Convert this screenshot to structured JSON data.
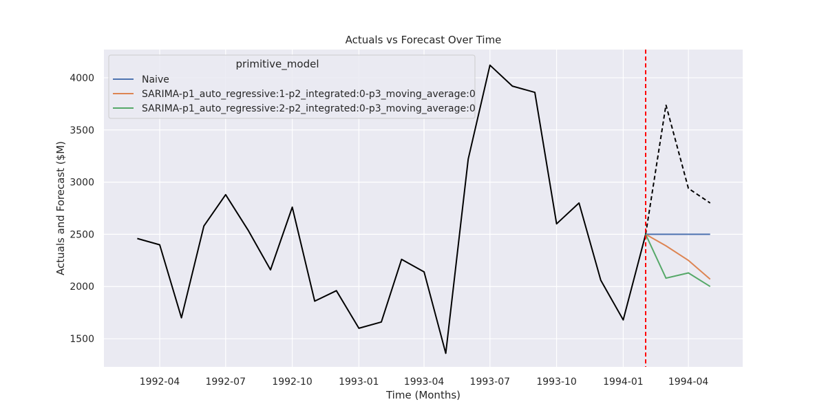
{
  "chart_data": {
    "type": "line",
    "title": "Actuals vs Forecast Over Time",
    "xlabel": "Time (Months)",
    "ylabel": "Actuals and Forecast ($M)",
    "x_ticks": [
      "1992-04",
      "1992-07",
      "1992-10",
      "1993-01",
      "1993-04",
      "1993-07",
      "1993-10",
      "1994-01",
      "1994-04"
    ],
    "y_ticks": [
      1500,
      2000,
      2500,
      3000,
      3500,
      4000
    ],
    "xlim": [
      "1992-01-15",
      "1994-06-15"
    ],
    "ylim": [
      1230,
      4270
    ],
    "grid": true,
    "legend": {
      "title": "primitive_model",
      "placement": "top-left",
      "entries": [
        "Naive",
        "SARIMA-p1_auto_regressive:1-p2_integrated:0-p3_moving_average:0",
        "SARIMA-p1_auto_regressive:2-p2_integrated:0-p3_moving_average:0"
      ]
    },
    "cutoff_date": "1994-02",
    "actuals": {
      "color": "#000000",
      "x": [
        "1992-03",
        "1992-04",
        "1992-05",
        "1992-06",
        "1992-07",
        "1992-08",
        "1992-09",
        "1992-10",
        "1992-11",
        "1992-12",
        "1993-01",
        "1993-02",
        "1993-03",
        "1993-04",
        "1993-05",
        "1993-06",
        "1993-07",
        "1993-08",
        "1993-09",
        "1993-10",
        "1993-11",
        "1993-12",
        "1994-01",
        "1994-02"
      ],
      "values": [
        2460,
        2400,
        1700,
        2580,
        2880,
        2540,
        2160,
        2760,
        1860,
        1960,
        1600,
        1660,
        2260,
        2140,
        1360,
        3220,
        4120,
        3920,
        3860,
        2600,
        2800,
        2060,
        1680,
        2500
      ]
    },
    "actuals_future": {
      "color": "#000000",
      "x": [
        "1994-02",
        "1994-03",
        "1994-04",
        "1994-05"
      ],
      "values": [
        2500,
        3740,
        2940,
        2800
      ]
    },
    "series": [
      {
        "name": "Naive",
        "color": "#4c72b0",
        "x": [
          "1994-02",
          "1994-03",
          "1994-04",
          "1994-05"
        ],
        "values": [
          2500,
          2500,
          2500,
          2500
        ]
      },
      {
        "name": "SARIMA-p1_auto_regressive:1-p2_integrated:0-p3_moving_average:0",
        "color": "#dd8452",
        "x": [
          "1994-02",
          "1994-03",
          "1994-04",
          "1994-05"
        ],
        "values": [
          2500,
          2390,
          2250,
          2070
        ]
      },
      {
        "name": "SARIMA-p1_auto_regressive:2-p2_integrated:0-p3_moving_average:0",
        "color": "#55a868",
        "x": [
          "1994-02",
          "1994-03",
          "1994-04",
          "1994-05"
        ],
        "values": [
          2500,
          2080,
          2130,
          2000
        ]
      }
    ],
    "colors": {
      "plot_bg": "#eaeaf2",
      "grid": "#ffffff",
      "cutoff": "#ff0000"
    }
  }
}
